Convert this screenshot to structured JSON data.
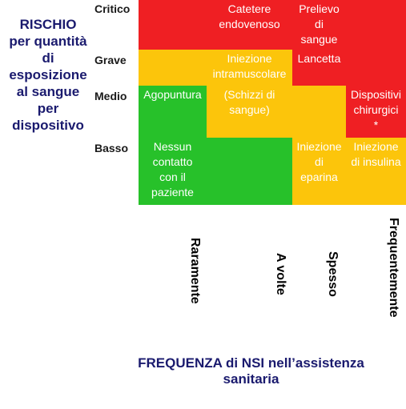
{
  "y_axis_label": [
    "RISCHIO",
    "per quantità",
    "di",
    "esposizione",
    "al sangue",
    "per",
    "dispositivo"
  ],
  "rows": [
    "Critico",
    "Grave",
    "Medio",
    "Basso"
  ],
  "columns": [
    "Raramente",
    "A volte",
    "Spesso",
    "Frequentemente"
  ],
  "x_axis_label": [
    "FREQUENZA di NSI nell’assistenza",
    "sanitaria"
  ],
  "colors": {
    "red": "#ef1f23",
    "yellow": "#fcc50b",
    "green": "#27c12a"
  },
  "cells": {
    "critico_avolte": [
      "Catetere",
      "endovenoso"
    ],
    "critico_spesso": [
      "Prelievo",
      "di",
      "sangue"
    ],
    "grave_raramente": [
      ""
    ],
    "grave_avolte": [
      "Iniezione",
      "intramuscolare"
    ],
    "grave_spesso": [
      "Lancetta"
    ],
    "medio_raramente": [
      "Agopuntura"
    ],
    "medio_avolte": [
      "(Schizzi di",
      "sangue)"
    ],
    "medio_frequentemente": [
      "Dispositivi",
      "chirurgici",
      "*"
    ],
    "basso_raramente": [
      "Nessun",
      "contatto",
      "con il",
      "paziente"
    ],
    "basso_spesso": [
      "Iniezione",
      "di",
      "eparina"
    ],
    "basso_frequentemente": [
      "Iniezione",
      "di insulina"
    ]
  }
}
